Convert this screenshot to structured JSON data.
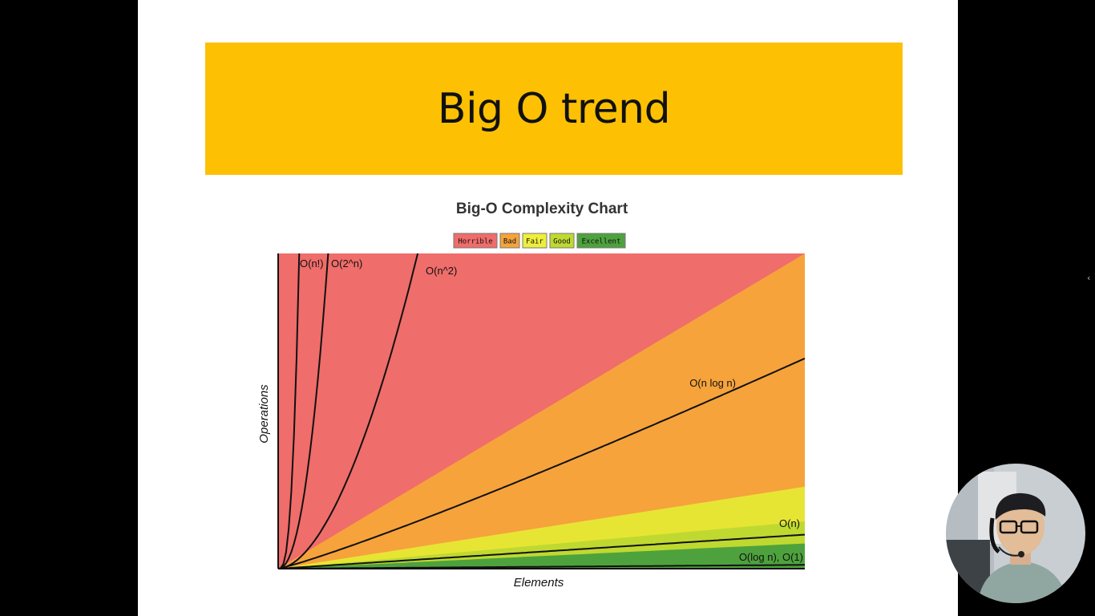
{
  "slide": {
    "title": "Big O trend"
  },
  "colors": {
    "banner": "#FDC003",
    "horrible": "#EF6D6A",
    "bad": "#F6A33C",
    "fair": "#E7E534",
    "good": "#BFD930",
    "excellent": "#4EA23D"
  },
  "chart_data": {
    "type": "area",
    "title": "Big-O Complexity Chart",
    "xlabel": "Elements",
    "ylabel": "Operations",
    "legend": {
      "placement": "top-center",
      "items": [
        {
          "label": "Horrible",
          "color": "#EF6D6A"
        },
        {
          "label": "Bad",
          "color": "#F6A33C"
        },
        {
          "label": "Fair",
          "color": "#EEEE3C"
        },
        {
          "label": "Good",
          "color": "#BFD930"
        },
        {
          "label": "Excellent",
          "color": "#4EA23D"
        }
      ]
    },
    "xlim": [
      0,
      100
    ],
    "ylim": [
      0,
      1000
    ],
    "grid": false,
    "series": [
      {
        "name": "O(n!)",
        "function": "factorial"
      },
      {
        "name": "O(2^n)",
        "function": "exponential"
      },
      {
        "name": "O(n^2)",
        "function": "quadratic"
      },
      {
        "name": "O(n log n)",
        "function": "linearithmic"
      },
      {
        "name": "O(n)",
        "function": "linear"
      },
      {
        "name": "O(log n), O(1)",
        "function": "logarithmic"
      }
    ]
  },
  "webcam": {
    "label": "presenter-webcam"
  },
  "side_panel": {
    "chevron": "‹"
  }
}
